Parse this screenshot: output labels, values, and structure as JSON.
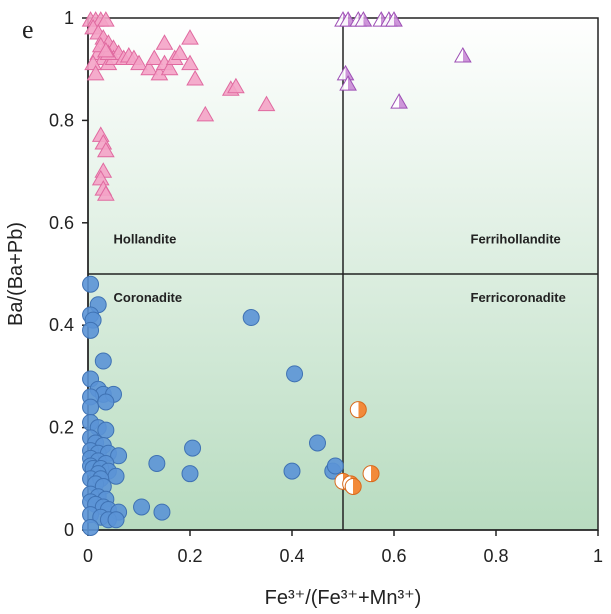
{
  "chart_data": {
    "type": "scatter",
    "panel_label": "e",
    "xlabel": "Fe³⁺/(Fe³⁺+Mn³⁺)",
    "ylabel": "Ba/(Ba+Pb)",
    "xlim": [
      0,
      1
    ],
    "ylim": [
      0,
      1
    ],
    "xticks": [
      "0",
      "0.2",
      "0.4",
      "0.6",
      "0.8",
      "1"
    ],
    "yticks": [
      "0",
      "0.2",
      "0.4",
      "0.6",
      "0.8",
      "1"
    ],
    "divider_x": 0.5,
    "divider_y": 0.5,
    "regions": [
      {
        "label": "Hollandite",
        "x": 0.05,
        "y": 0.56
      },
      {
        "label": "Ferrihollandite",
        "x": 0.75,
        "y": 0.56
      },
      {
        "label": "Coronadite",
        "x": 0.05,
        "y": 0.445
      },
      {
        "label": "Ferricoronadite",
        "x": 0.75,
        "y": 0.445
      }
    ],
    "colors": {
      "pink_triangle": "#f4a3c6",
      "pink_triangle_edge": "#e06aa0",
      "purple_triangle": "#c98bd6",
      "purple_triangle_edge": "#9d4fb5",
      "blue_circle": "#5b93d6",
      "blue_circle_edge": "#3f72b3",
      "orange_circle": "#f28a3a",
      "orange_circle_edge": "#d86a1d",
      "region_fill_top": "#ffffff",
      "region_fill_bottom": "#b8dcc0"
    },
    "series": [
      {
        "marker": "pink-triangle",
        "points": [
          [
            0.005,
            0.995
          ],
          [
            0.015,
            0.995
          ],
          [
            0.025,
            0.995
          ],
          [
            0.035,
            0.995
          ],
          [
            0.01,
            0.98
          ],
          [
            0.02,
            0.97
          ],
          [
            0.03,
            0.96
          ],
          [
            0.04,
            0.95
          ],
          [
            0.05,
            0.94
          ],
          [
            0.02,
            0.93
          ],
          [
            0.03,
            0.92
          ],
          [
            0.04,
            0.91
          ],
          [
            0.01,
            0.91
          ],
          [
            0.015,
            0.89
          ],
          [
            0.05,
            0.92
          ],
          [
            0.06,
            0.93
          ],
          [
            0.07,
            0.92
          ],
          [
            0.08,
            0.925
          ],
          [
            0.09,
            0.92
          ],
          [
            0.1,
            0.91
          ],
          [
            0.12,
            0.9
          ],
          [
            0.13,
            0.92
          ],
          [
            0.14,
            0.89
          ],
          [
            0.15,
            0.91
          ],
          [
            0.16,
            0.9
          ],
          [
            0.17,
            0.92
          ],
          [
            0.18,
            0.93
          ],
          [
            0.2,
            0.91
          ],
          [
            0.15,
            0.95
          ],
          [
            0.2,
            0.96
          ],
          [
            0.21,
            0.88
          ],
          [
            0.23,
            0.81
          ],
          [
            0.28,
            0.86
          ],
          [
            0.29,
            0.865
          ],
          [
            0.35,
            0.83
          ],
          [
            0.025,
            0.77
          ],
          [
            0.03,
            0.755
          ],
          [
            0.035,
            0.74
          ],
          [
            0.03,
            0.7
          ],
          [
            0.025,
            0.685
          ],
          [
            0.03,
            0.665
          ],
          [
            0.035,
            0.655
          ],
          [
            0.04,
            0.93
          ],
          [
            0.025,
            0.945
          ],
          [
            0.035,
            0.935
          ]
        ]
      },
      {
        "marker": "purple-triangle",
        "points": [
          [
            0.5,
            0.995
          ],
          [
            0.51,
            0.995
          ],
          [
            0.53,
            0.995
          ],
          [
            0.54,
            0.995
          ],
          [
            0.575,
            0.995
          ],
          [
            0.59,
            0.995
          ],
          [
            0.6,
            0.995
          ],
          [
            0.505,
            0.89
          ],
          [
            0.51,
            0.87
          ],
          [
            0.61,
            0.835
          ],
          [
            0.735,
            0.925
          ]
        ]
      },
      {
        "marker": "blue-circle",
        "points": [
          [
            0.005,
            0.48
          ],
          [
            0.02,
            0.44
          ],
          [
            0.005,
            0.42
          ],
          [
            0.01,
            0.41
          ],
          [
            0.005,
            0.39
          ],
          [
            0.03,
            0.33
          ],
          [
            0.005,
            0.295
          ],
          [
            0.02,
            0.275
          ],
          [
            0.03,
            0.265
          ],
          [
            0.05,
            0.265
          ],
          [
            0.005,
            0.26
          ],
          [
            0.035,
            0.25
          ],
          [
            0.005,
            0.24
          ],
          [
            0.005,
            0.21
          ],
          [
            0.02,
            0.2
          ],
          [
            0.035,
            0.195
          ],
          [
            0.005,
            0.18
          ],
          [
            0.015,
            0.17
          ],
          [
            0.03,
            0.165
          ],
          [
            0.005,
            0.155
          ],
          [
            0.02,
            0.15
          ],
          [
            0.04,
            0.15
          ],
          [
            0.06,
            0.145
          ],
          [
            0.005,
            0.14
          ],
          [
            0.02,
            0.135
          ],
          [
            0.035,
            0.13
          ],
          [
            0.005,
            0.125
          ],
          [
            0.01,
            0.12
          ],
          [
            0.025,
            0.12
          ],
          [
            0.04,
            0.115
          ],
          [
            0.02,
            0.11
          ],
          [
            0.055,
            0.105
          ],
          [
            0.005,
            0.1
          ],
          [
            0.025,
            0.1
          ],
          [
            0.015,
            0.09
          ],
          [
            0.03,
            0.085
          ],
          [
            0.005,
            0.07
          ],
          [
            0.02,
            0.065
          ],
          [
            0.035,
            0.06
          ],
          [
            0.005,
            0.055
          ],
          [
            0.015,
            0.05
          ],
          [
            0.03,
            0.045
          ],
          [
            0.04,
            0.04
          ],
          [
            0.06,
            0.035
          ],
          [
            0.005,
            0.03
          ],
          [
            0.025,
            0.025
          ],
          [
            0.04,
            0.02
          ],
          [
            0.055,
            0.02
          ],
          [
            0.005,
            0.005
          ],
          [
            0.105,
            0.045
          ],
          [
            0.135,
            0.13
          ],
          [
            0.145,
            0.035
          ],
          [
            0.2,
            0.11
          ],
          [
            0.205,
            0.16
          ],
          [
            0.32,
            0.415
          ],
          [
            0.405,
            0.305
          ],
          [
            0.4,
            0.115
          ],
          [
            0.45,
            0.17
          ],
          [
            0.48,
            0.115
          ],
          [
            0.485,
            0.125
          ]
        ]
      },
      {
        "marker": "orange-half-circle",
        "points": [
          [
            0.53,
            0.235
          ],
          [
            0.5,
            0.095
          ],
          [
            0.515,
            0.09
          ],
          [
            0.52,
            0.085
          ],
          [
            0.555,
            0.11
          ]
        ]
      }
    ]
  }
}
